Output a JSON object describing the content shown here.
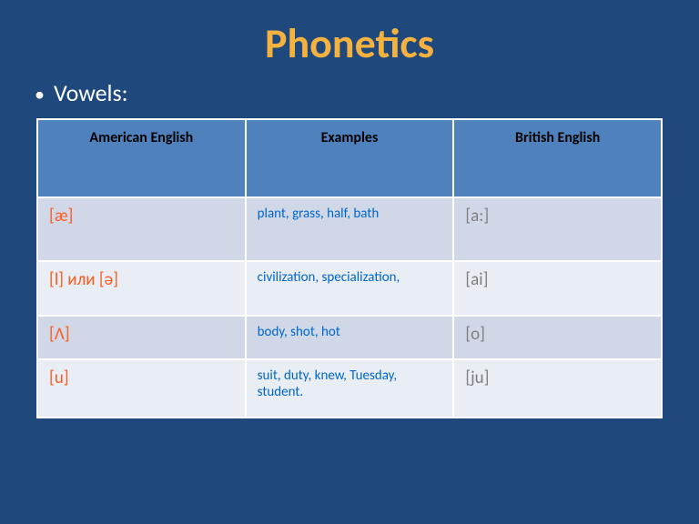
{
  "title": "Phonetics",
  "subtitle": "Vowels:",
  "colors": {
    "background": "#1f497d",
    "title": "#f6b23e",
    "subtitle": "#ffffff",
    "header_bg": "#4f81bd",
    "header_text": "#000000",
    "band_a": "#d0d8e8",
    "band_b": "#e9edf4",
    "american": "#ff5a1f",
    "examples": "#0066cc",
    "british": "#7f7f7f",
    "border": "#ffffff"
  },
  "table": {
    "columns": [
      "American English",
      "Examples",
      "British English"
    ],
    "rows": [
      {
        "ae": "[æ]",
        "ex": "plant, grass, half, bath",
        "be": "[a:]"
      },
      {
        "ae": "[l] или [ə]",
        "ex": "civilization, specialization,",
        "be": "[ai]"
      },
      {
        "ae": "[Ʌ]",
        "ex": "body, shot, hot",
        "be": "[o]"
      },
      {
        "ae": "[u]",
        "ex": "suit, duty, knew, Tuesday, student.",
        "be": "[ju]"
      }
    ]
  }
}
